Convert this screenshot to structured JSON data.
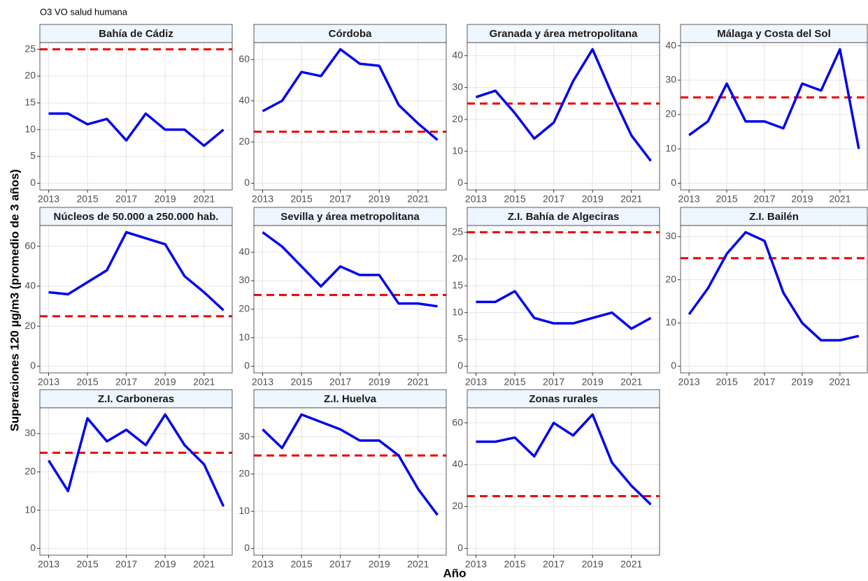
{
  "title": "O3 VO salud humana",
  "xlabel": "Año",
  "ylabel": "Superaciones 120 µg/m3 (promedio de 3 años)",
  "chart_data": [
    {
      "type": "line",
      "title": "Bahía de Cádiz",
      "x": [
        2013,
        2014,
        2015,
        2016,
        2017,
        2018,
        2019,
        2020,
        2021,
        2022
      ],
      "values": [
        13,
        13,
        11,
        12,
        8,
        13,
        10,
        10,
        7,
        10
      ],
      "color": "#0000ee",
      "reference_line": 25,
      "reference_color": "#ee0000",
      "xlim": [
        2012.55,
        2022.45
      ],
      "xticks": [
        2013,
        2015,
        2017,
        2019,
        2021
      ],
      "ylim": [
        -1.25,
        26.25
      ],
      "yticks": [
        0,
        5,
        10,
        15,
        20,
        25
      ],
      "grid": true
    },
    {
      "type": "line",
      "title": "Córdoba",
      "x": [
        2013,
        2014,
        2015,
        2016,
        2017,
        2018,
        2019,
        2020,
        2021,
        2022
      ],
      "values": [
        35,
        40,
        54,
        52,
        65,
        58,
        57,
        38,
        29,
        21
      ],
      "color": "#0000ee",
      "reference_line": 25,
      "reference_color": "#ee0000",
      "xlim": [
        2012.55,
        2022.45
      ],
      "xticks": [
        2013,
        2015,
        2017,
        2019,
        2021
      ],
      "ylim": [
        -3.25,
        68.25
      ],
      "yticks": [
        0,
        20,
        40,
        60
      ],
      "grid": true
    },
    {
      "type": "line",
      "title": "Granada y área metropolitana",
      "x": [
        2013,
        2014,
        2015,
        2016,
        2017,
        2018,
        2019,
        2020,
        2021,
        2022
      ],
      "values": [
        27,
        29,
        22,
        14,
        19,
        32,
        42,
        28,
        15,
        7
      ],
      "color": "#0000ee",
      "reference_line": 25,
      "reference_color": "#ee0000",
      "xlim": [
        2012.55,
        2022.45
      ],
      "xticks": [
        2013,
        2015,
        2017,
        2019,
        2021
      ],
      "ylim": [
        -2.1,
        44.1
      ],
      "yticks": [
        0,
        10,
        20,
        30,
        40
      ],
      "grid": true
    },
    {
      "type": "line",
      "title": "Málaga y Costa del Sol",
      "x": [
        2013,
        2014,
        2015,
        2016,
        2017,
        2018,
        2019,
        2020,
        2021,
        2022
      ],
      "values": [
        14,
        18,
        29,
        18,
        18,
        16,
        29,
        27,
        39,
        10
      ],
      "color": "#0000ee",
      "reference_line": 25,
      "reference_color": "#ee0000",
      "xlim": [
        2012.55,
        2022.45
      ],
      "xticks": [
        2013,
        2015,
        2017,
        2019,
        2021
      ],
      "ylim": [
        -1.95,
        40.95
      ],
      "yticks": [
        0,
        10,
        20,
        30,
        40
      ],
      "grid": true
    },
    {
      "type": "line",
      "title": "Núcleos de 50.000 a 250.000 hab.",
      "x": [
        2013,
        2014,
        2015,
        2016,
        2017,
        2018,
        2019,
        2020,
        2021,
        2022
      ],
      "values": [
        37,
        36,
        42,
        48,
        67,
        64,
        61,
        45,
        37,
        28
      ],
      "color": "#0000ee",
      "reference_line": 25,
      "reference_color": "#ee0000",
      "xlim": [
        2012.55,
        2022.45
      ],
      "xticks": [
        2013,
        2015,
        2017,
        2019,
        2021
      ],
      "ylim": [
        -3.35,
        70.35
      ],
      "yticks": [
        0,
        20,
        40,
        60
      ],
      "grid": true
    },
    {
      "type": "line",
      "title": "Sevilla y área metropolitana",
      "x": [
        2013,
        2014,
        2015,
        2016,
        2017,
        2018,
        2019,
        2020,
        2021,
        2022
      ],
      "values": [
        47,
        42,
        35,
        28,
        35,
        32,
        32,
        22,
        22,
        21
      ],
      "color": "#0000ee",
      "reference_line": 25,
      "reference_color": "#ee0000",
      "xlim": [
        2012.55,
        2022.45
      ],
      "xticks": [
        2013,
        2015,
        2017,
        2019,
        2021
      ],
      "ylim": [
        -2.35,
        49.35
      ],
      "yticks": [
        0,
        10,
        20,
        30,
        40
      ],
      "grid": true
    },
    {
      "type": "line",
      "title": "Z.I. Bahía de Algeciras",
      "x": [
        2013,
        2014,
        2015,
        2016,
        2017,
        2018,
        2019,
        2020,
        2021,
        2022
      ],
      "values": [
        12,
        12,
        14,
        9,
        8,
        8,
        9,
        10,
        7,
        9
      ],
      "color": "#0000ee",
      "reference_line": 25,
      "reference_color": "#ee0000",
      "xlim": [
        2012.55,
        2022.45
      ],
      "xticks": [
        2013,
        2015,
        2017,
        2019,
        2021
      ],
      "ylim": [
        -1.25,
        26.25
      ],
      "yticks": [
        0,
        5,
        10,
        15,
        20,
        25
      ],
      "grid": true
    },
    {
      "type": "line",
      "title": "Z.I. Bailén",
      "x": [
        2013,
        2014,
        2015,
        2016,
        2017,
        2018,
        2019,
        2020,
        2021,
        2022
      ],
      "values": [
        12,
        18,
        26,
        31,
        29,
        17,
        10,
        6,
        6,
        7
      ],
      "color": "#0000ee",
      "reference_line": 25,
      "reference_color": "#ee0000",
      "xlim": [
        2012.55,
        2022.45
      ],
      "xticks": [
        2013,
        2015,
        2017,
        2019,
        2021
      ],
      "ylim": [
        -1.55,
        32.55
      ],
      "yticks": [
        0,
        10,
        20,
        30
      ],
      "grid": true
    },
    {
      "type": "line",
      "title": "Z.I. Carboneras",
      "x": [
        2013,
        2014,
        2015,
        2016,
        2017,
        2018,
        2019,
        2020,
        2021,
        2022
      ],
      "values": [
        23,
        15,
        34,
        28,
        31,
        27,
        35,
        27,
        22,
        11
      ],
      "color": "#0000ee",
      "reference_line": 25,
      "reference_color": "#ee0000",
      "xlim": [
        2012.55,
        2022.45
      ],
      "xticks": [
        2013,
        2015,
        2017,
        2019,
        2021
      ],
      "ylim": [
        -1.75,
        36.75
      ],
      "yticks": [
        0,
        10,
        20,
        30
      ],
      "grid": true
    },
    {
      "type": "line",
      "title": "Z.I. Huelva",
      "x": [
        2013,
        2014,
        2015,
        2016,
        2017,
        2018,
        2019,
        2020,
        2021,
        2022
      ],
      "values": [
        32,
        27,
        36,
        34,
        32,
        29,
        29,
        25,
        16,
        9
      ],
      "color": "#0000ee",
      "reference_line": 25,
      "reference_color": "#ee0000",
      "xlim": [
        2012.55,
        2022.45
      ],
      "xticks": [
        2013,
        2015,
        2017,
        2019,
        2021
      ],
      "ylim": [
        -1.8,
        37.8
      ],
      "yticks": [
        0,
        10,
        20,
        30
      ],
      "grid": true
    },
    {
      "type": "line",
      "title": "Zonas rurales",
      "x": [
        2013,
        2014,
        2015,
        2016,
        2017,
        2018,
        2019,
        2020,
        2021,
        2022
      ],
      "values": [
        51,
        51,
        53,
        44,
        60,
        54,
        64,
        41,
        30,
        21
      ],
      "color": "#0000ee",
      "reference_line": 25,
      "reference_color": "#ee0000",
      "xlim": [
        2012.55,
        2022.45
      ],
      "xticks": [
        2013,
        2015,
        2017,
        2019,
        2021
      ],
      "ylim": [
        -3.2,
        67.2
      ],
      "yticks": [
        0,
        20,
        40,
        60
      ],
      "grid": true
    }
  ]
}
